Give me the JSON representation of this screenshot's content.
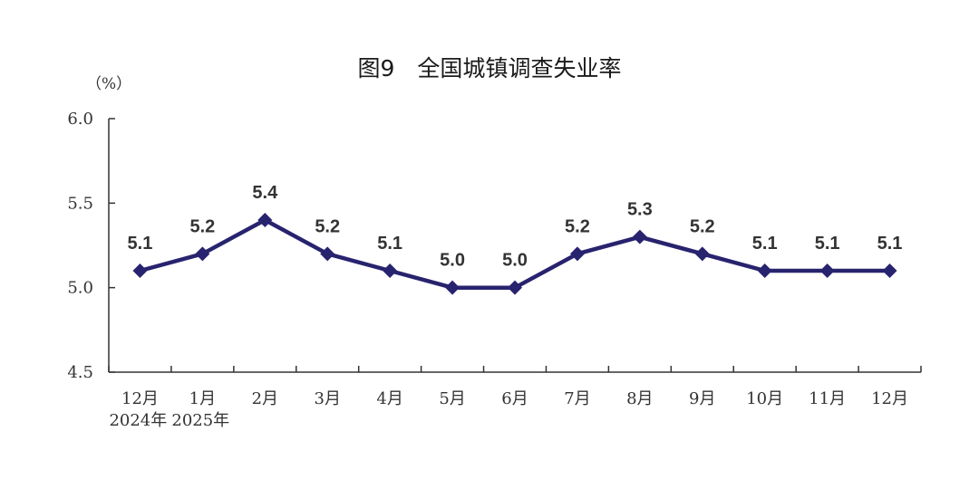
{
  "chart_data": {
    "type": "line",
    "title": "图9　全国城镇调查失业率",
    "ylabel": "（%）",
    "ylim": [
      4.5,
      6.0
    ],
    "yticks": [
      "6.0",
      "5.5",
      "5.0",
      "4.5"
    ],
    "categories": [
      "12月",
      "1月",
      "2月",
      "3月",
      "4月",
      "5月",
      "6月",
      "7月",
      "8月",
      "9月",
      "10月",
      "11月",
      "12月"
    ],
    "year_labels": [
      "2024年",
      "2025年"
    ],
    "series": [
      {
        "values": [
          5.1,
          5.2,
          5.4,
          5.2,
          5.1,
          5.0,
          5.0,
          5.2,
          5.3,
          5.2,
          5.1,
          5.1,
          5.1
        ],
        "labels": [
          "5.1",
          "5.2",
          "5.4",
          "5.2",
          "5.1",
          "5.0",
          "5.0",
          "5.2",
          "5.3",
          "5.2",
          "5.1",
          "5.1",
          "5.1"
        ],
        "color": "#28236e"
      }
    ],
    "grid": false,
    "marker": "diamond"
  }
}
